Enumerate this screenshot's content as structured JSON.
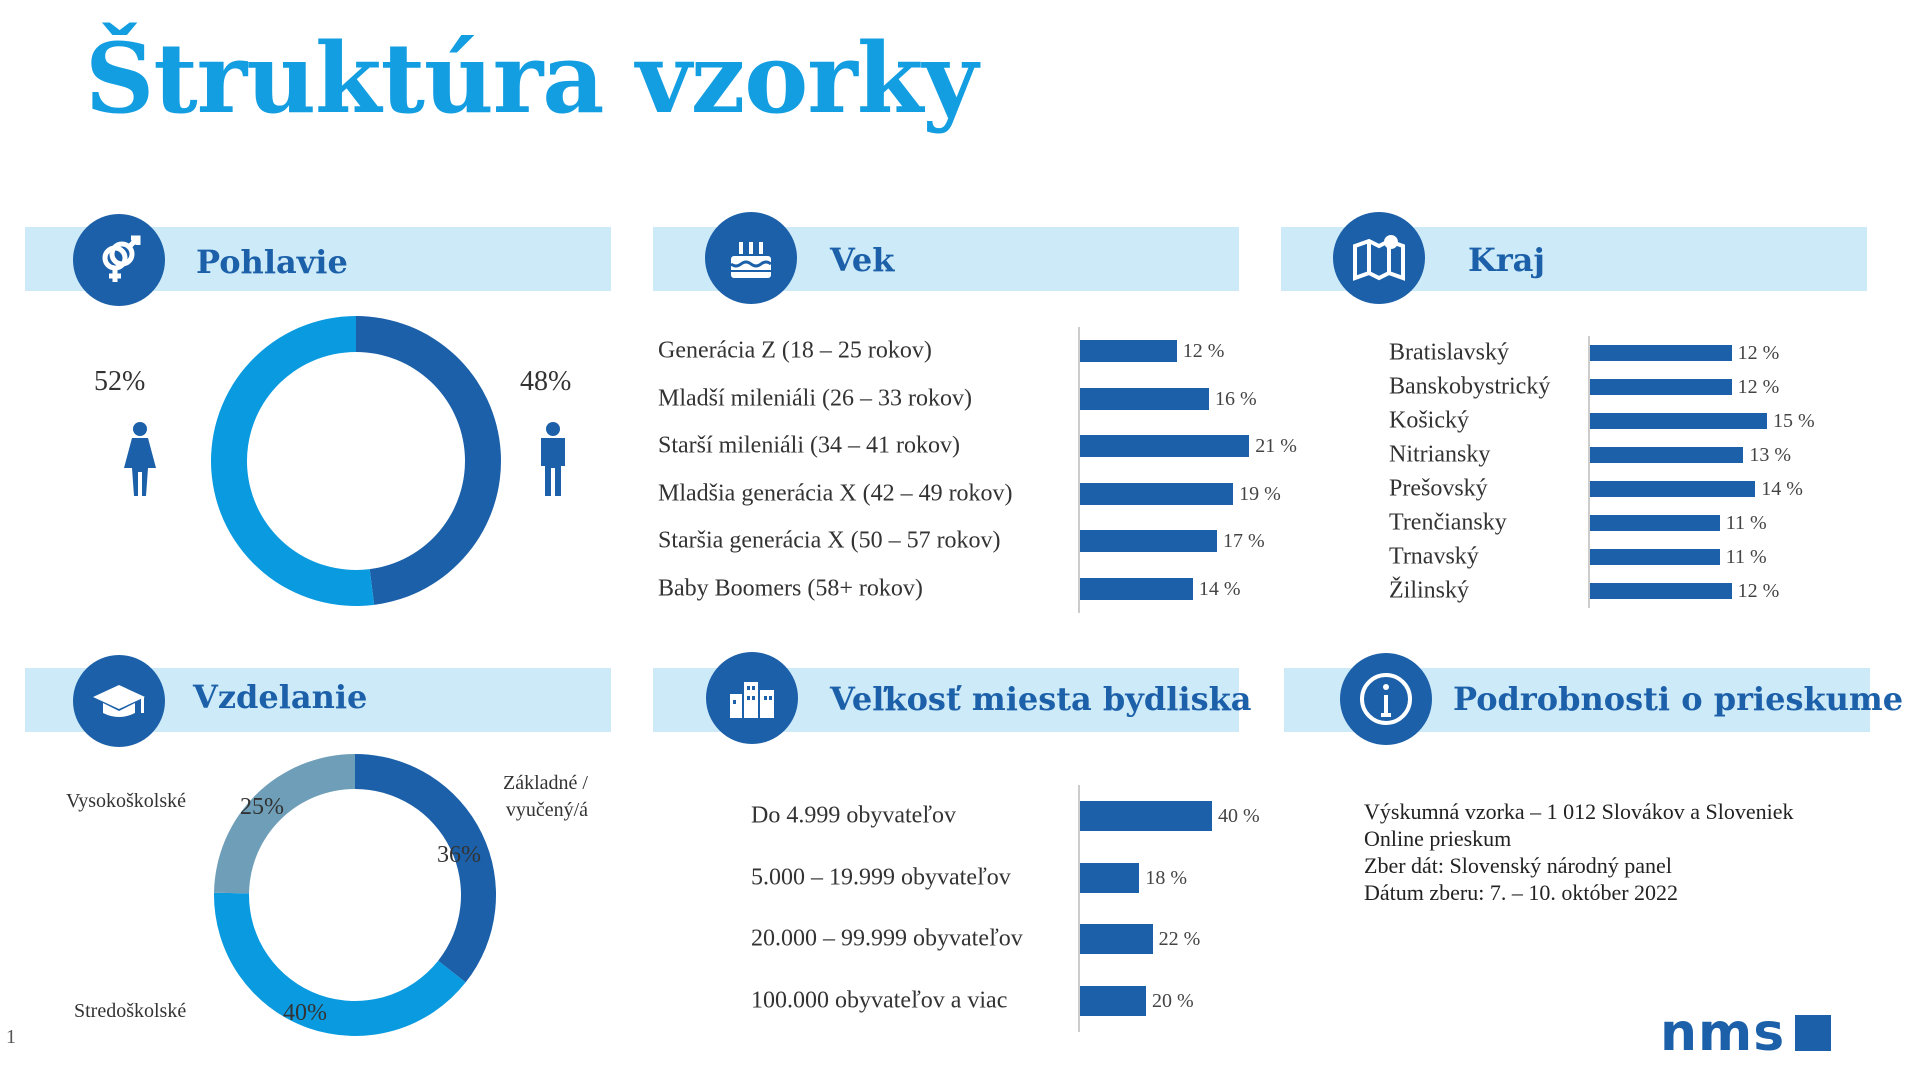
{
  "title": "Štruktúra vzorky",
  "page_number": "1",
  "logo": "nms",
  "colors": {
    "title": "#139ee2",
    "dark_blue": "#1b60a9",
    "light_blue": "#0a9ae0",
    "grey_blue": "#6f9fb8",
    "band": "#cdeaf8"
  },
  "sections": {
    "pohlavie": {
      "title": "Pohlavie",
      "icon": "gender-icon"
    },
    "vek": {
      "title": "Vek",
      "icon": "birthday-cake-icon"
    },
    "kraj": {
      "title": "Kraj",
      "icon": "map-icon"
    },
    "vzdelanie": {
      "title": "Vzdelanie",
      "icon": "graduation-cap-icon"
    },
    "velkost": {
      "title": "Veľkosť miesta bydliska",
      "icon": "buildings-icon"
    },
    "podrobnosti": {
      "title": "Podrobnosti o prieskume",
      "icon": "info-icon"
    }
  },
  "info_lines": [
    "Výskumná vzorka – 1 012 Slovákov a Sloveniek",
    "Online prieskum",
    "Zber dát: Slovenský národný panel",
    "Dátum zberu: 7. – 10. október 2022"
  ],
  "chart_data": [
    {
      "id": "pohlavie",
      "type": "pie",
      "donut": true,
      "categories": [
        "Ženy",
        "Muži"
      ],
      "labels": [
        "52%",
        "48%"
      ],
      "values": [
        52,
        48
      ],
      "colors": [
        "#0a9ae0",
        "#1b60a9"
      ]
    },
    {
      "id": "vek",
      "type": "bar",
      "orientation": "horizontal",
      "categories": [
        "Generácia Z (18 – 25 rokov)",
        "Mladší mileniáli (26 – 33 rokov)",
        "Starší mileniáli (34 – 41 rokov)",
        "Mladšia generácia X (42 – 49 rokov)",
        "Staršia generácia X (50 – 57 rokov)",
        "Baby Boomers (58+ rokov)"
      ],
      "values": [
        12,
        16,
        21,
        19,
        17,
        14
      ],
      "unit": "%"
    },
    {
      "id": "kraj",
      "type": "bar",
      "orientation": "horizontal",
      "categories": [
        "Bratislavský",
        "Banskobystrický",
        "Košický",
        "Nitriansky",
        "Prešovský",
        "Trenčiansky",
        "Trnavský",
        "Žilinský"
      ],
      "values": [
        12,
        12,
        15,
        13,
        14,
        11,
        11,
        12
      ],
      "unit": "%"
    },
    {
      "id": "vzdelanie",
      "type": "pie",
      "donut": true,
      "categories": [
        "Základné / vyučený/á",
        "Stredoškolské",
        "Vysokoškolské"
      ],
      "labels": [
        "36%",
        "40%",
        "25%"
      ],
      "values": [
        36,
        40,
        25
      ],
      "colors": [
        "#1b60a9",
        "#0a9ae0",
        "#6f9fb8"
      ]
    },
    {
      "id": "velkost",
      "type": "bar",
      "orientation": "horizontal",
      "categories": [
        "Do 4.999 obyvateľov",
        "5.000 – 19.999 obyvateľov",
        "20.000 – 99.999 obyvateľov",
        "100.000 obyvateľov a viac"
      ],
      "values": [
        40,
        18,
        22,
        20
      ],
      "unit": "%"
    }
  ]
}
